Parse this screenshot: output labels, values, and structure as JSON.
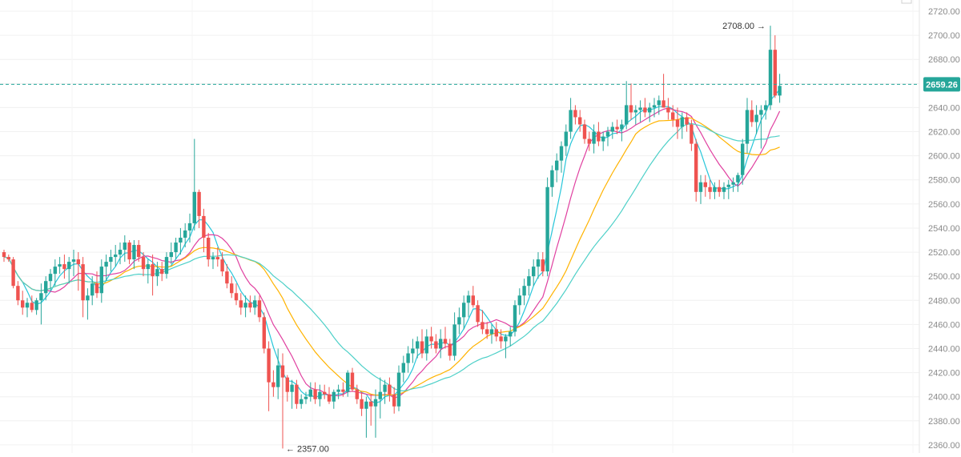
{
  "chart_data": {
    "type": "candlestick",
    "y_ticks": [
      2360,
      2380,
      2400,
      2420,
      2440,
      2460,
      2480,
      2500,
      2520,
      2540,
      2560,
      2580,
      2600,
      2620,
      2640,
      2660,
      2680,
      2700,
      2720
    ],
    "y_tick_labels": [
      "2360.00",
      "2380.00",
      "2400.00",
      "2420.00",
      "2440.00",
      "2460.00",
      "2480.00",
      "2500.00",
      "2520.00",
      "2540.00",
      "2560.00",
      "2580.00",
      "2600.00",
      "2620.00",
      "2640.00",
      "2660.00",
      "2680.00",
      "2700.00",
      "2720.00"
    ],
    "ylim": [
      2353.3,
      2729.3
    ],
    "grid": true,
    "current_price": 2659.26,
    "current_price_label": "2659.26",
    "high_annotation": {
      "value": 2708.0,
      "label": "2708.00"
    },
    "low_annotation": {
      "value": 2357.0,
      "label": "2357.00"
    },
    "up_color": "#26a69a",
    "down_color": "#ef5350",
    "candles": [
      [
        2520,
        2522,
        2512,
        2516
      ],
      [
        2516,
        2518,
        2512,
        2514
      ],
      [
        2514,
        2516,
        2490,
        2492
      ],
      [
        2492,
        2496,
        2476,
        2480
      ],
      [
        2480,
        2488,
        2468,
        2474
      ],
      [
        2474,
        2482,
        2466,
        2478
      ],
      [
        2478,
        2484,
        2470,
        2472
      ],
      [
        2472,
        2482,
        2468,
        2480
      ],
      [
        2480,
        2494,
        2460,
        2486
      ],
      [
        2486,
        2500,
        2480,
        2496
      ],
      [
        2496,
        2506,
        2488,
        2502
      ],
      [
        2502,
        2514,
        2492,
        2508
      ],
      [
        2508,
        2516,
        2502,
        2510
      ],
      [
        2510,
        2518,
        2498,
        2506
      ],
      [
        2506,
        2516,
        2494,
        2512
      ],
      [
        2512,
        2522,
        2500,
        2514
      ],
      [
        2514,
        2520,
        2488,
        2510
      ],
      [
        2510,
        2516,
        2466,
        2480
      ],
      [
        2480,
        2490,
        2464,
        2484
      ],
      [
        2484,
        2500,
        2476,
        2494
      ],
      [
        2494,
        2504,
        2482,
        2486
      ],
      [
        2486,
        2514,
        2478,
        2508
      ],
      [
        2508,
        2518,
        2496,
        2512
      ],
      [
        2512,
        2522,
        2504,
        2516
      ],
      [
        2516,
        2526,
        2508,
        2518
      ],
      [
        2518,
        2528,
        2510,
        2522
      ],
      [
        2522,
        2534,
        2512,
        2528
      ],
      [
        2528,
        2530,
        2510,
        2514
      ],
      [
        2514,
        2530,
        2506,
        2526
      ],
      [
        2526,
        2530,
        2512,
        2516
      ],
      [
        2516,
        2520,
        2500,
        2506
      ],
      [
        2506,
        2514,
        2494,
        2510
      ],
      [
        2510,
        2518,
        2484,
        2500
      ],
      [
        2500,
        2512,
        2492,
        2506
      ],
      [
        2506,
        2512,
        2496,
        2502
      ],
      [
        2502,
        2520,
        2498,
        2516
      ],
      [
        2516,
        2528,
        2510,
        2520
      ],
      [
        2520,
        2532,
        2514,
        2528
      ],
      [
        2528,
        2540,
        2518,
        2532
      ],
      [
        2532,
        2544,
        2524,
        2538
      ],
      [
        2538,
        2552,
        2528,
        2544
      ],
      [
        2544,
        2614,
        2538,
        2570
      ],
      [
        2570,
        2572,
        2540,
        2550
      ],
      [
        2550,
        2556,
        2520,
        2532
      ],
      [
        2532,
        2536,
        2508,
        2514
      ],
      [
        2514,
        2520,
        2506,
        2516
      ],
      [
        2516,
        2524,
        2508,
        2514
      ],
      [
        2514,
        2520,
        2500,
        2504
      ],
      [
        2504,
        2510,
        2490,
        2494
      ],
      [
        2494,
        2500,
        2482,
        2486
      ],
      [
        2486,
        2494,
        2476,
        2480
      ],
      [
        2480,
        2486,
        2468,
        2474
      ],
      [
        2474,
        2484,
        2466,
        2478
      ],
      [
        2478,
        2484,
        2470,
        2474
      ],
      [
        2474,
        2484,
        2468,
        2480
      ],
      [
        2480,
        2484,
        2462,
        2466
      ],
      [
        2466,
        2470,
        2436,
        2440
      ],
      [
        2440,
        2446,
        2388,
        2412
      ],
      [
        2412,
        2422,
        2400,
        2408
      ],
      [
        2408,
        2440,
        2398,
        2426
      ],
      [
        2426,
        2436,
        2357,
        2416
      ],
      [
        2416,
        2418,
        2396,
        2404
      ],
      [
        2404,
        2414,
        2390,
        2410
      ],
      [
        2410,
        2414,
        2390,
        2394
      ],
      [
        2394,
        2402,
        2390,
        2398
      ],
      [
        2398,
        2404,
        2394,
        2400
      ],
      [
        2400,
        2412,
        2396,
        2406
      ],
      [
        2406,
        2412,
        2394,
        2398
      ],
      [
        2398,
        2410,
        2392,
        2404
      ],
      [
        2404,
        2410,
        2398,
        2402
      ],
      [
        2402,
        2408,
        2394,
        2396
      ],
      [
        2396,
        2406,
        2390,
        2404
      ],
      [
        2404,
        2410,
        2398,
        2406
      ],
      [
        2406,
        2412,
        2400,
        2404
      ],
      [
        2404,
        2422,
        2400,
        2420
      ],
      [
        2420,
        2424,
        2404,
        2406
      ],
      [
        2406,
        2410,
        2394,
        2398
      ],
      [
        2398,
        2404,
        2384,
        2390
      ],
      [
        2390,
        2400,
        2366,
        2396
      ],
      [
        2396,
        2402,
        2376,
        2392
      ],
      [
        2392,
        2406,
        2366,
        2398
      ],
      [
        2398,
        2416,
        2382,
        2404
      ],
      [
        2404,
        2414,
        2394,
        2410
      ],
      [
        2410,
        2416,
        2396,
        2402
      ],
      [
        2402,
        2408,
        2386,
        2392
      ],
      [
        2392,
        2426,
        2388,
        2420
      ],
      [
        2420,
        2434,
        2412,
        2428
      ],
      [
        2428,
        2442,
        2420,
        2436
      ],
      [
        2436,
        2448,
        2428,
        2440
      ],
      [
        2440,
        2450,
        2432,
        2446
      ],
      [
        2446,
        2456,
        2432,
        2436
      ],
      [
        2436,
        2456,
        2430,
        2450
      ],
      [
        2450,
        2458,
        2440,
        2446
      ],
      [
        2446,
        2452,
        2436,
        2440
      ],
      [
        2440,
        2456,
        2432,
        2448
      ],
      [
        2448,
        2458,
        2440,
        2444
      ],
      [
        2444,
        2448,
        2430,
        2434
      ],
      [
        2434,
        2470,
        2430,
        2460
      ],
      [
        2460,
        2474,
        2452,
        2466
      ],
      [
        2466,
        2484,
        2456,
        2478
      ],
      [
        2478,
        2488,
        2466,
        2484
      ],
      [
        2484,
        2492,
        2474,
        2476
      ],
      [
        2476,
        2480,
        2458,
        2462
      ],
      [
        2462,
        2472,
        2452,
        2456
      ],
      [
        2456,
        2462,
        2448,
        2452
      ],
      [
        2452,
        2460,
        2444,
        2456
      ],
      [
        2456,
        2462,
        2446,
        2450
      ],
      [
        2450,
        2456,
        2440,
        2446
      ],
      [
        2446,
        2452,
        2432,
        2450
      ],
      [
        2450,
        2458,
        2442,
        2454
      ],
      [
        2454,
        2480,
        2450,
        2476
      ],
      [
        2476,
        2490,
        2468,
        2484
      ],
      [
        2484,
        2498,
        2476,
        2492
      ],
      [
        2492,
        2506,
        2484,
        2500
      ],
      [
        2500,
        2514,
        2492,
        2508
      ],
      [
        2508,
        2520,
        2498,
        2514
      ],
      [
        2514,
        2520,
        2500,
        2504
      ],
      [
        2504,
        2582,
        2500,
        2574
      ],
      [
        2574,
        2592,
        2566,
        2588
      ],
      [
        2588,
        2602,
        2578,
        2596
      ],
      [
        2596,
        2612,
        2586,
        2608
      ],
      [
        2608,
        2626,
        2600,
        2620
      ],
      [
        2620,
        2648,
        2614,
        2638
      ],
      [
        2638,
        2642,
        2626,
        2632
      ],
      [
        2632,
        2638,
        2620,
        2626
      ],
      [
        2626,
        2630,
        2610,
        2614
      ],
      [
        2614,
        2620,
        2604,
        2610
      ],
      [
        2610,
        2626,
        2602,
        2620
      ],
      [
        2620,
        2628,
        2608,
        2612
      ],
      [
        2612,
        2620,
        2604,
        2616
      ],
      [
        2616,
        2624,
        2608,
        2620
      ],
      [
        2620,
        2628,
        2614,
        2624
      ],
      [
        2624,
        2630,
        2618,
        2622
      ],
      [
        2622,
        2630,
        2612,
        2626
      ],
      [
        2626,
        2662,
        2622,
        2642
      ],
      [
        2642,
        2660,
        2630,
        2636
      ],
      [
        2636,
        2642,
        2626,
        2638
      ],
      [
        2638,
        2646,
        2628,
        2640
      ],
      [
        2640,
        2648,
        2632,
        2636
      ],
      [
        2636,
        2644,
        2628,
        2640
      ],
      [
        2640,
        2648,
        2632,
        2642
      ],
      [
        2642,
        2650,
        2634,
        2646
      ],
      [
        2646,
        2668,
        2640,
        2640
      ],
      [
        2640,
        2648,
        2630,
        2636
      ],
      [
        2636,
        2642,
        2624,
        2630
      ],
      [
        2630,
        2640,
        2614,
        2624
      ],
      [
        2624,
        2636,
        2614,
        2632
      ],
      [
        2632,
        2636,
        2620,
        2626
      ],
      [
        2626,
        2630,
        2604,
        2610
      ],
      [
        2610,
        2614,
        2562,
        2570
      ],
      [
        2570,
        2584,
        2560,
        2578
      ],
      [
        2578,
        2584,
        2566,
        2574
      ],
      [
        2574,
        2580,
        2564,
        2570
      ],
      [
        2570,
        2578,
        2564,
        2574
      ],
      [
        2574,
        2580,
        2566,
        2570
      ],
      [
        2570,
        2578,
        2564,
        2574
      ],
      [
        2574,
        2580,
        2564,
        2576
      ],
      [
        2576,
        2582,
        2570,
        2578
      ],
      [
        2578,
        2586,
        2570,
        2584
      ],
      [
        2584,
        2614,
        2576,
        2610
      ],
      [
        2610,
        2648,
        2602,
        2638
      ],
      [
        2638,
        2646,
        2624,
        2628
      ],
      [
        2628,
        2642,
        2618,
        2634
      ],
      [
        2634,
        2642,
        2606,
        2638
      ],
      [
        2638,
        2646,
        2630,
        2642
      ],
      [
        2642,
        2708,
        2638,
        2688
      ],
      [
        2688,
        2700,
        2648,
        2650
      ],
      [
        2650,
        2668,
        2644,
        2658
      ]
    ],
    "ma_series": [
      {
        "period": 5,
        "color": "#26c6da"
      },
      {
        "period": 10,
        "color": "#e040a0"
      },
      {
        "period": 20,
        "color": "#ffb300"
      },
      {
        "period": 30,
        "color": "#4dd0c8"
      }
    ]
  }
}
